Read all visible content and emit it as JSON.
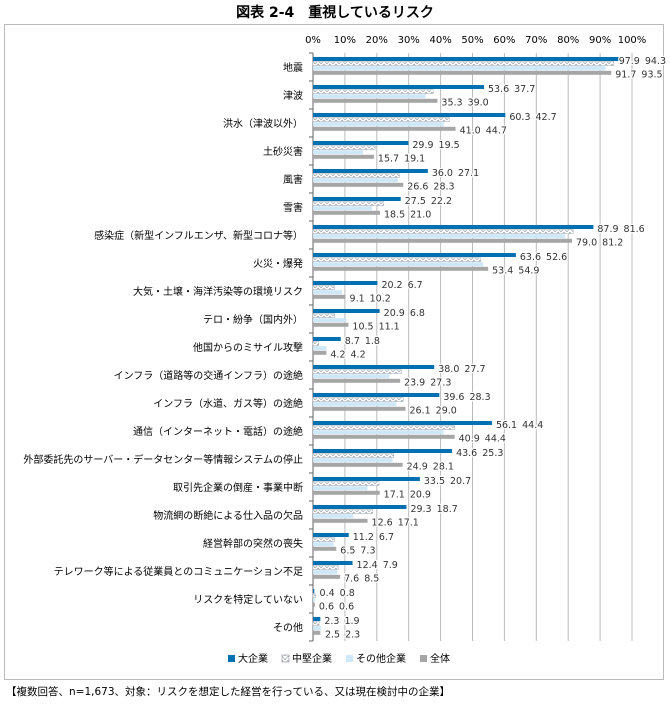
{
  "title": "図表 2-4　重視しているリスク",
  "note": "【複数回答、n=1,673、対象：リスクを想定した経営を行っている、又は現在検討中の企業】",
  "chart_data": {
    "type": "bar",
    "orientation": "horizontal",
    "xlim": [
      0,
      100
    ],
    "x_ticks": [
      "0%",
      "10%",
      "20%",
      "30%",
      "40%",
      "50%",
      "60%",
      "70%",
      "80%",
      "90%",
      "100%"
    ],
    "grid": true,
    "legend_position": "bottom",
    "categories": [
      "地震",
      "津波",
      "洪水（津波以外）",
      "土砂災害",
      "風害",
      "雪害",
      "感染症（新型インフルエンザ、新型コロナ等）",
      "火災・爆発",
      "大気・土壌・海洋汚染等の環境リスク",
      "テロ・紛争（国内外）",
      "他国からのミサイル攻撃",
      "インフラ（道路等の交通インフラ）の途絶",
      "インフラ（水道、ガス等）の途絶",
      "通信（インターネット・電話）の途絶",
      "外部委託先のサーバー・データセンター等情報システムの停止",
      "取引先企業の倒産・事業中断",
      "物流網の断絶による仕入品の欠品",
      "経営幹部の突然の喪失",
      "テレワーク等による従業員とのコミュニケーション不足",
      "リスクを特定していない",
      "その他"
    ],
    "series": [
      {
        "name": "大企業",
        "color": "#0070b0",
        "values": [
          97.9,
          53.6,
          60.3,
          29.9,
          36.0,
          27.5,
          87.9,
          63.6,
          20.2,
          20.9,
          8.7,
          38.0,
          39.6,
          56.1,
          43.6,
          33.5,
          29.3,
          11.2,
          12.4,
          0.4,
          2.3
        ]
      },
      {
        "name": "中堅企業",
        "color": "#ffffff",
        "pattern": "hatched",
        "values": [
          94.3,
          37.7,
          42.7,
          19.5,
          27.1,
          22.2,
          81.6,
          52.6,
          6.7,
          6.8,
          1.8,
          27.7,
          28.3,
          44.4,
          25.3,
          20.7,
          18.7,
          6.7,
          7.9,
          0.8,
          1.9
        ]
      },
      {
        "name": "その他企業",
        "color": "#cfe8f8",
        "values": [
          91.7,
          35.3,
          41.0,
          15.7,
          26.6,
          18.5,
          79.0,
          53.4,
          9.1,
          10.5,
          4.2,
          23.9,
          26.1,
          40.9,
          24.9,
          17.1,
          12.6,
          6.5,
          7.6,
          0.6,
          2.5
        ]
      },
      {
        "name": "全体",
        "color": "#a6a6a6",
        "values": [
          93.5,
          39.0,
          44.7,
          19.1,
          28.3,
          21.0,
          81.2,
          54.9,
          10.2,
          11.1,
          4.2,
          27.3,
          29.0,
          44.4,
          28.1,
          20.9,
          17.1,
          7.3,
          8.5,
          0.6,
          2.3
        ]
      }
    ]
  }
}
